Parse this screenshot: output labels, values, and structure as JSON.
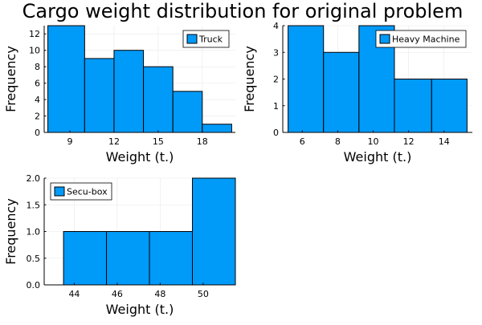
{
  "title": "Cargo weight distribution for original problem",
  "colors": {
    "bar": "#009af9",
    "outline": "#000000"
  },
  "chart_data": [
    {
      "type": "bar",
      "xlabel": "Weight (t.)",
      "ylabel": "Frequency",
      "legend": "Truck",
      "legend_position": "top-right",
      "grid": true,
      "bins": [
        [
          7.5,
          10
        ],
        [
          10,
          12
        ],
        [
          12,
          14
        ],
        [
          14,
          16
        ],
        [
          16,
          18
        ],
        [
          18,
          20
        ]
      ],
      "values": [
        13,
        9,
        10,
        8,
        5,
        1
      ],
      "xlim": [
        7.25,
        20.25
      ],
      "ylim": [
        0,
        13
      ],
      "xticks": [
        9,
        12,
        15,
        18
      ],
      "yticks": [
        0,
        2,
        4,
        6,
        8,
        10,
        12
      ]
    },
    {
      "type": "bar",
      "xlabel": "Weight (t.)",
      "ylabel": "Frequency",
      "legend": "Heavy Machine",
      "legend_position": "top-right",
      "grid": true,
      "bins": [
        [
          5.2,
          7.2
        ],
        [
          7.2,
          9.2
        ],
        [
          9.2,
          11.2
        ],
        [
          11.2,
          13.3
        ],
        [
          13.3,
          15.3
        ]
      ],
      "values": [
        4,
        3,
        4,
        2,
        2
      ],
      "xlim": [
        4.9,
        15.6
      ],
      "ylim": [
        0,
        4
      ],
      "xticks": [
        6,
        8,
        10,
        12,
        14
      ],
      "yticks": [
        0,
        1,
        2,
        3,
        4
      ]
    },
    {
      "type": "bar",
      "xlabel": "Weight (t.)",
      "ylabel": "Frequency",
      "legend": "Secu-box",
      "legend_position": "top-left",
      "grid": true,
      "bins": [
        [
          43.5,
          45.5
        ],
        [
          45.5,
          47.5
        ],
        [
          47.5,
          49.5
        ],
        [
          49.5,
          51.5
        ]
      ],
      "values": [
        1,
        1,
        1,
        2
      ],
      "xlim": [
        42.6,
        51.5
      ],
      "ylim": [
        0,
        2
      ],
      "xticks": [
        44,
        46,
        48,
        50
      ],
      "yticks": [
        "0.0",
        "0.5",
        "1.0",
        "1.5",
        "2.0"
      ]
    }
  ]
}
